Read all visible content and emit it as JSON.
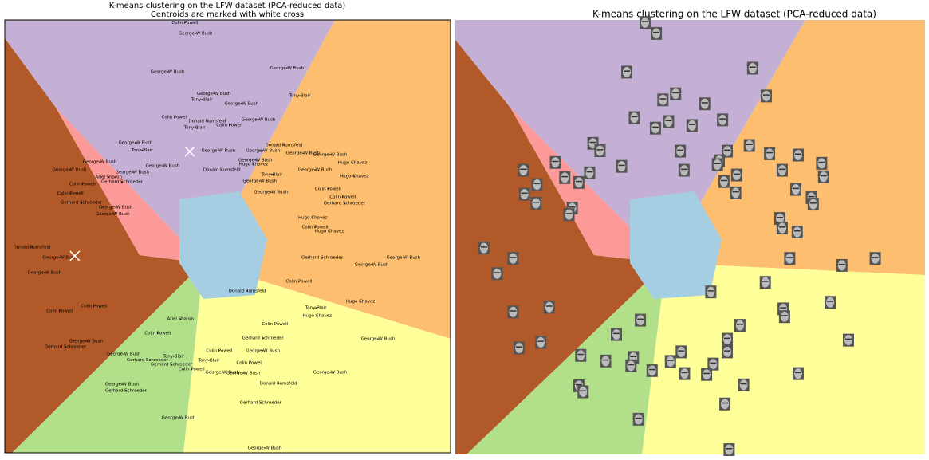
{
  "chart_data": [
    {
      "type": "scatter",
      "marker": "label",
      "title": "K-means clustering on the LFW dataset (PCA-reduced data)",
      "subtitle": "Centroids are marked with white cross",
      "xlim": [
        0,
        100
      ],
      "ylim": [
        0,
        100
      ],
      "names": [
        "Colin Powell",
        "George W Bush",
        "George W Bush",
        "George W Bush",
        "Tony Blair",
        "George W Bush",
        "Tony Blair",
        "George W Bush",
        "Colin Powell",
        "Donald Rumsfeld",
        "George W Bush",
        "Tony Blair",
        "Colin Powell",
        "George W Bush",
        "Tony Blair",
        "Donald Rumsfeld",
        "George W Bush",
        "George W Bush",
        "George W Bush",
        "George W Bush",
        "George W Bush",
        "George W Bush",
        "George W Bush",
        "Hugo Chavez",
        "George W Bush",
        "George W Bush",
        "Ariel Sharon",
        "Donald Rumsfeld",
        "Hugo Chavez",
        "George W Bush",
        "Tony Blair",
        "Gerhard Schroeder",
        "Colin Powell",
        "Hugo Chavez",
        "George W Bush",
        "Colin Powell",
        "Colin Powell",
        "Colin Powell",
        "George W Bush",
        "Gerhard Schroeder",
        "Gerhard Schroeder",
        "George W Bush",
        "George W Bush",
        "Hugo Chavez",
        "Donald Rumsfeld",
        "Colin Powell",
        "Hugo Chavez",
        "George W Bush",
        "George W Bush",
        "Gerhard Schroeder",
        "George W Bush",
        "George W Bush",
        "Colin Powell",
        "Donald Rumsfeld",
        "Hugo Chavez",
        "Colin Powell",
        "Colin Powell",
        "Tony Blair",
        "Hugo Chavez",
        "Colin Powell",
        "Ariel Sharon",
        "Colin Powell",
        "Gerhard Schroeder",
        "George W Bush",
        "George W Bush",
        "Gerhard Schroeder",
        "Colin Powell",
        "George W Bush",
        "George W Bush",
        "Tony Blair",
        "Gerhard Schroeder",
        "Tony Blair",
        "Colin Powell",
        "Gerhard Schroeder",
        "Colin Powell",
        "George W Bush",
        "George W Bush",
        "George W Bush",
        "Donald Rumsfeld",
        "George W Bush",
        "Gerhard Schroeder",
        "Gerhard Schroeder",
        "George W Bush",
        "George W Bush"
      ],
      "x": [
        40.4,
        42.8,
        63.3,
        36.5,
        66.2,
        46.9,
        44.2,
        53.1,
        38.1,
        45.4,
        56.9,
        42.6,
        50.4,
        29.3,
        30.8,
        62.6,
        66.9,
        47.9,
        57.9,
        73.0,
        35.4,
        21.3,
        56.2,
        78.0,
        14.5,
        28.6,
        23.3,
        48.7,
        55.8,
        69.6,
        59.9,
        26.3,
        17.4,
        78.4,
        57.2,
        72.5,
        14.7,
        75.8,
        59.7,
        17.2,
        76.2,
        24.9,
        24.2,
        69.1,
        6.1,
        69.6,
        72.8,
        12.3,
        89.4,
        71.2,
        82.3,
        8.9,
        66.0,
        54.4,
        79.8,
        12.3,
        20.0,
        69.8,
        70.1,
        60.6,
        39.4,
        34.3,
        57.9,
        83.7,
        18.2,
        13.6,
        48.1,
        57.9,
        26.7,
        37.9,
        32.0,
        45.8,
        54.9,
        37.4,
        41.9,
        48.8,
        73.0,
        53.5,
        61.4,
        26.3,
        27.2,
        57.4,
        39.0,
        58.3
      ],
      "y": [
        99.4,
        96.9,
        88.9,
        88.0,
        82.5,
        83.0,
        81.6,
        80.7,
        77.5,
        76.6,
        77.0,
        75.1,
        75.7,
        71.6,
        69.9,
        71.1,
        69.2,
        69.8,
        69.8,
        68.9,
        66.3,
        67.2,
        67.6,
        67.0,
        65.4,
        64.8,
        63.7,
        65.4,
        66.7,
        65.4,
        64.3,
        62.6,
        62.1,
        63.9,
        62.8,
        61.0,
        59.9,
        59.1,
        60.2,
        57.8,
        57.6,
        56.7,
        55.2,
        54.3,
        47.5,
        52.1,
        51.2,
        45.1,
        45.1,
        45.1,
        43.5,
        41.6,
        39.6,
        37.4,
        35.0,
        32.8,
        33.9,
        33.5,
        31.7,
        29.7,
        30.9,
        27.6,
        26.5,
        26.3,
        25.8,
        24.5,
        23.6,
        23.6,
        22.8,
        22.3,
        21.5,
        21.4,
        20.8,
        20.4,
        19.3,
        18.6,
        18.6,
        18.4,
        16.0,
        15.8,
        14.4,
        11.6,
        8.1,
        1.1
      ],
      "centroids": {
        "x": [
          41.5,
          15.7
        ],
        "y": [
          69.6,
          45.5
        ]
      }
    },
    {
      "type": "scatter",
      "marker": "face",
      "title": "K-means clustering on the LFW dataset (PCA-reduced data)",
      "xlim": [
        0,
        100
      ],
      "ylim": [
        0,
        100
      ]
    }
  ]
}
